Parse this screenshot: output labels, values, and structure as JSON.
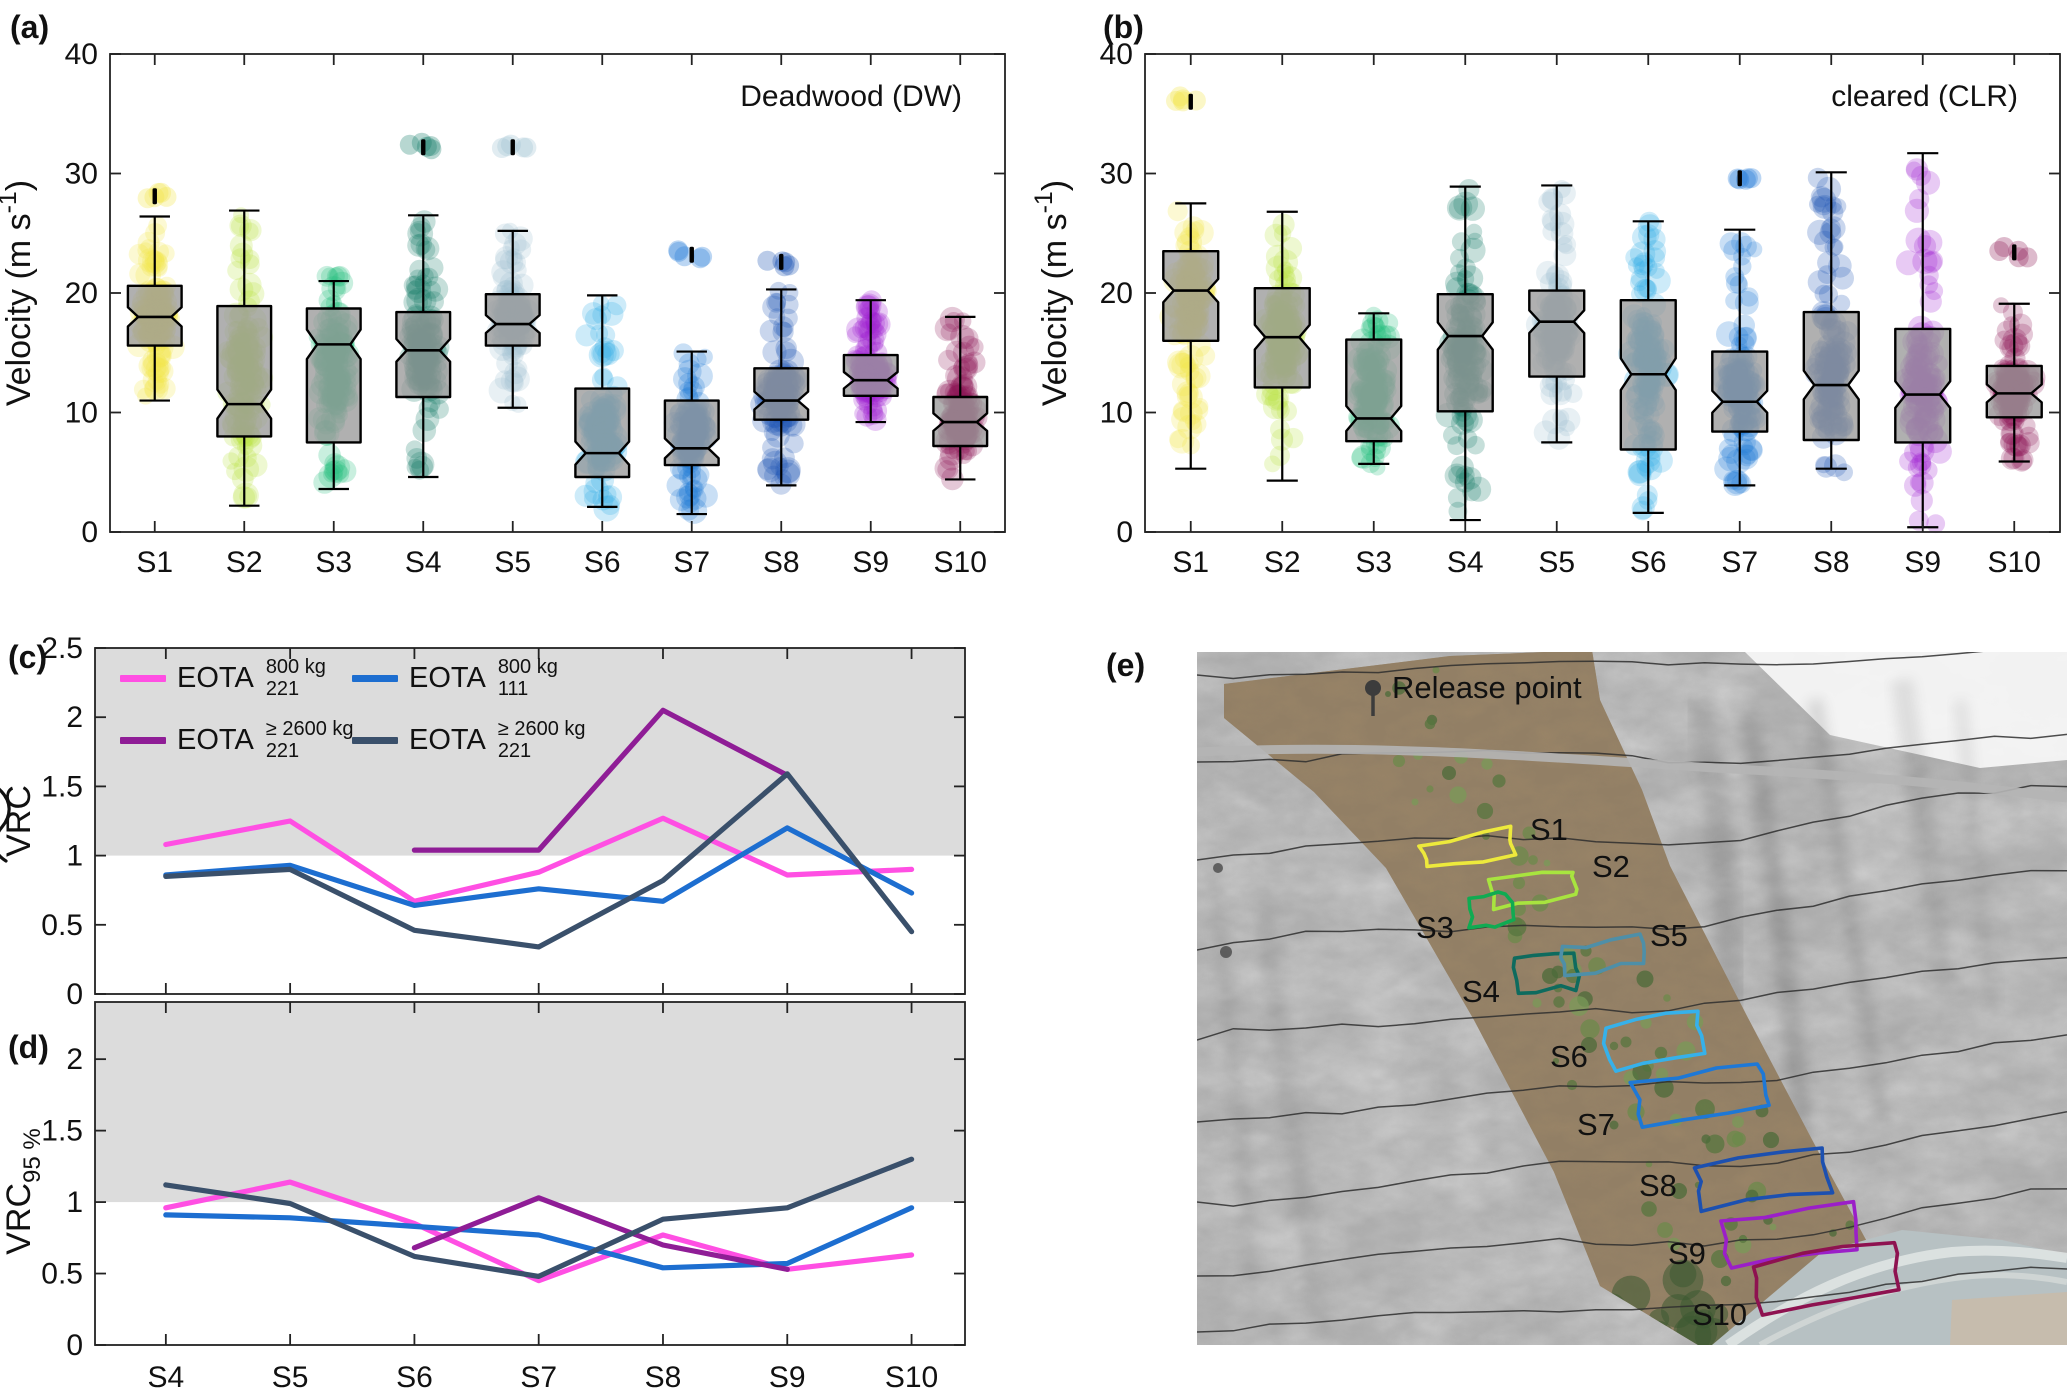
{
  "figure": {
    "panel_letters": {
      "a": "(a)",
      "b": "(b)",
      "c": "(c)",
      "d": "(d)",
      "e": "(e)"
    }
  },
  "legend": {
    "entries": [
      {
        "name": "EOTA",
        "sup": "800 kg",
        "sub": "221"
      },
      {
        "name": "EOTA",
        "sup": "800 kg",
        "sub": "111"
      },
      {
        "name": "EOTA",
        "sup": "≥ 2600 kg",
        "sub": "221"
      },
      {
        "name": "EOTA",
        "sup": "≥ 2600 kg",
        "sub": "221"
      }
    ]
  },
  "chart_data": [
    {
      "panel": "a",
      "type": "box",
      "title": "Deadwood (DW)",
      "ylabel": {
        "text": "Velocity (m s",
        "sup": "-1",
        "suffix": ")"
      },
      "ylim": [
        0,
        40
      ],
      "yticks": [
        0,
        10,
        20,
        30,
        40
      ],
      "categories": [
        "S1",
        "S2",
        "S3",
        "S4",
        "S5",
        "S6",
        "S7",
        "S8",
        "S9",
        "S10"
      ],
      "colors": [
        "#f2e545",
        "#b8e23f",
        "#1fbe78",
        "#127a66",
        "#9dc0cf",
        "#2fabe8",
        "#1e78d6",
        "#1c52b2",
        "#9e20d0",
        "#8e1a57"
      ],
      "boxes": [
        {
          "whislo": 11.0,
          "q1": 15.6,
          "med": 18.0,
          "q3": 20.6,
          "whishi": 26.4,
          "outliers": [
            28.1
          ]
        },
        {
          "whislo": 2.2,
          "q1": 8.0,
          "med": 10.7,
          "q3": 18.9,
          "whishi": 26.9,
          "outliers": []
        },
        {
          "whislo": 3.6,
          "q1": 7.5,
          "med": 15.7,
          "q3": 18.7,
          "whishi": 21.0,
          "outliers": []
        },
        {
          "whislo": 4.6,
          "q1": 11.3,
          "med": 15.2,
          "q3": 18.4,
          "whishi": 26.5,
          "outliers": [
            32.2
          ]
        },
        {
          "whislo": 10.4,
          "q1": 15.6,
          "med": 17.4,
          "q3": 19.9,
          "whishi": 25.2,
          "outliers": [
            32.2
          ]
        },
        {
          "whislo": 2.1,
          "q1": 4.6,
          "med": 6.6,
          "q3": 12.0,
          "whishi": 19.8,
          "outliers": []
        },
        {
          "whislo": 1.5,
          "q1": 5.6,
          "med": 7.0,
          "q3": 11.0,
          "whishi": 15.1,
          "outliers": [
            23.2
          ]
        },
        {
          "whislo": 3.9,
          "q1": 9.4,
          "med": 11.0,
          "q3": 13.7,
          "whishi": 20.3,
          "outliers": [
            22.6
          ]
        },
        {
          "whislo": 9.2,
          "q1": 11.4,
          "med": 12.7,
          "q3": 14.8,
          "whishi": 19.4,
          "outliers": []
        },
        {
          "whislo": 4.4,
          "q1": 7.2,
          "med": 9.2,
          "q3": 11.3,
          "whishi": 18.0,
          "outliers": []
        }
      ]
    },
    {
      "panel": "b",
      "type": "box",
      "title": "cleared (CLR)",
      "ylabel": {
        "text": "Velocity (m s",
        "sup": "-1",
        "suffix": ")"
      },
      "ylim": [
        0,
        40
      ],
      "yticks": [
        0,
        10,
        20,
        30,
        40
      ],
      "categories": [
        "S1",
        "S2",
        "S3",
        "S4",
        "S5",
        "S6",
        "S7",
        "S8",
        "S9",
        "S10"
      ],
      "colors": [
        "#f2e545",
        "#b8e23f",
        "#1fbe78",
        "#127a66",
        "#9dc0cf",
        "#2fabe8",
        "#1e78d6",
        "#1c52b2",
        "#9e20d0",
        "#8e1a57"
      ],
      "boxes": [
        {
          "whislo": 5.3,
          "q1": 16.0,
          "med": 20.2,
          "q3": 23.5,
          "whishi": 27.5,
          "outliers": [
            36.0
          ]
        },
        {
          "whislo": 4.3,
          "q1": 12.1,
          "med": 16.3,
          "q3": 20.4,
          "whishi": 26.8,
          "outliers": []
        },
        {
          "whislo": 5.7,
          "q1": 7.6,
          "med": 9.5,
          "q3": 16.1,
          "whishi": 18.3,
          "outliers": []
        },
        {
          "whislo": 1.0,
          "q1": 10.1,
          "med": 16.4,
          "q3": 19.9,
          "whishi": 28.9,
          "outliers": []
        },
        {
          "whislo": 7.5,
          "q1": 13.0,
          "med": 17.6,
          "q3": 20.2,
          "whishi": 29.0,
          "outliers": []
        },
        {
          "whislo": 1.6,
          "q1": 6.9,
          "med": 13.2,
          "q3": 19.4,
          "whishi": 26.0,
          "outliers": []
        },
        {
          "whislo": 3.9,
          "q1": 8.4,
          "med": 10.9,
          "q3": 15.1,
          "whishi": 25.3,
          "outliers": [
            29.6
          ]
        },
        {
          "whislo": 5.3,
          "q1": 7.7,
          "med": 12.3,
          "q3": 18.4,
          "whishi": 30.1,
          "outliers": []
        },
        {
          "whislo": 0.4,
          "q1": 7.5,
          "med": 11.5,
          "q3": 17.0,
          "whishi": 31.7,
          "outliers": []
        },
        {
          "whislo": 5.9,
          "q1": 9.6,
          "med": 11.6,
          "q3": 13.9,
          "whishi": 19.1,
          "outliers": [
            23.4
          ]
        }
      ]
    },
    {
      "panel": "c",
      "type": "line",
      "ylabel": {
        "text": "VRC",
        "accent": "tilde"
      },
      "ylim": [
        0,
        2.5
      ],
      "yticks": [
        0,
        0.5,
        1,
        1.5,
        2,
        2.5
      ],
      "band": [
        1,
        2.5
      ],
      "band_color": "#dcdcdc",
      "show_x_labels": false,
      "categories": [
        "S4",
        "S5",
        "S6",
        "S7",
        "S8",
        "S9",
        "S10"
      ],
      "series": [
        {
          "name": "EOTA 221 800kg",
          "color": "#ff4fe3",
          "values": [
            1.08,
            1.25,
            0.67,
            0.88,
            1.27,
            0.86,
            0.9
          ]
        },
        {
          "name": "EOTA 111 800kg",
          "color": "#1d6ed0",
          "values": [
            0.86,
            0.93,
            0.64,
            0.76,
            0.67,
            1.2,
            0.73
          ]
        },
        {
          "name": "EOTA 221 >=2600kg",
          "color": "#8f1d96",
          "values": [
            null,
            null,
            1.04,
            1.04,
            2.05,
            1.58,
            null
          ]
        },
        {
          "name": "EOTA 221 >=2600kg (dark)",
          "color": "#3a506b",
          "values": [
            0.85,
            0.9,
            0.46,
            0.34,
            0.82,
            1.59,
            0.45
          ]
        }
      ]
    },
    {
      "panel": "d",
      "type": "line",
      "ylabel": {
        "text": "VRC",
        "sub": "95 %"
      },
      "ylim": [
        0,
        2.4
      ],
      "yticks": [
        0,
        0.5,
        1,
        1.5,
        2
      ],
      "band": [
        1,
        2.4
      ],
      "band_color": "#dcdcdc",
      "show_x_labels": true,
      "categories": [
        "S4",
        "S5",
        "S6",
        "S7",
        "S8",
        "S9",
        "S10"
      ],
      "series": [
        {
          "name": "EOTA 221 800kg",
          "color": "#ff4fe3",
          "values": [
            0.96,
            1.14,
            0.85,
            0.45,
            0.77,
            0.53,
            0.63
          ]
        },
        {
          "name": "EOTA 111 800kg",
          "color": "#1d6ed0",
          "values": [
            0.91,
            0.89,
            0.83,
            0.77,
            0.54,
            0.57,
            0.96
          ]
        },
        {
          "name": "EOTA 221 >=2600kg",
          "color": "#8f1d96",
          "values": [
            null,
            null,
            0.68,
            1.03,
            0.7,
            0.53,
            null
          ]
        },
        {
          "name": "EOTA 221 >=2600kg (dark)",
          "color": "#3a506b",
          "values": [
            1.12,
            0.99,
            0.62,
            0.48,
            0.88,
            0.96,
            1.3
          ]
        }
      ]
    }
  ],
  "map": {
    "panel": "e",
    "release_point_label": "Release point",
    "sites": [
      {
        "label": "S1",
        "color": "#ede93c"
      },
      {
        "label": "S2",
        "color": "#a8e43f"
      },
      {
        "label": "S3",
        "color": "#10ab52"
      },
      {
        "label": "S4",
        "color": "#0e6b5e"
      },
      {
        "label": "S5",
        "color": "#4e8fa8"
      },
      {
        "label": "S6",
        "color": "#36b1ea"
      },
      {
        "label": "S7",
        "color": "#1e78d6"
      },
      {
        "label": "S8",
        "color": "#1c50b0"
      },
      {
        "label": "S9",
        "color": "#9b1fc8"
      },
      {
        "label": "S10",
        "color": "#8e1250"
      }
    ]
  }
}
